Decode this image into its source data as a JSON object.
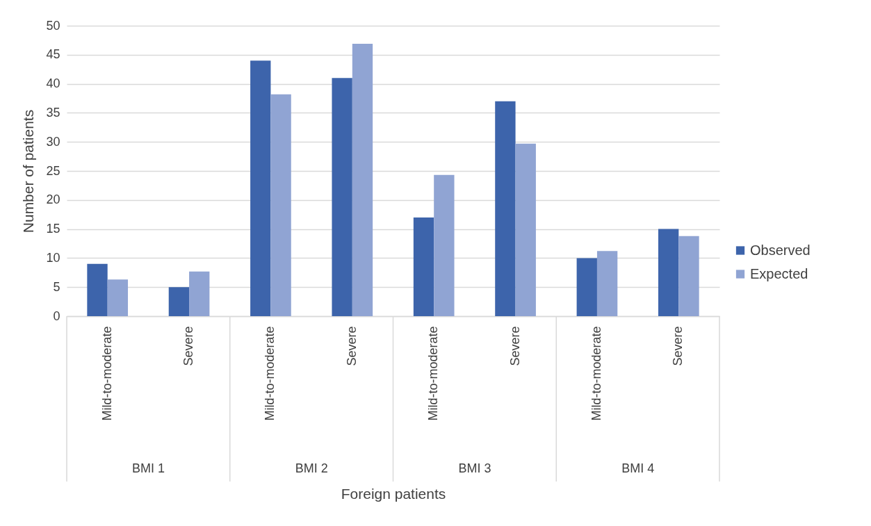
{
  "chart_data": {
    "type": "bar",
    "xlabel": "Foreign patients",
    "ylabel": "Number of patients",
    "categories": [
      "Mild-to-moderate",
      "Severe",
      "Mild-to-moderate",
      "Severe",
      "Mild-to-moderate",
      "Severe",
      "Mild-to-moderate",
      "Severe"
    ],
    "annotations": [
      "BMI 1",
      "BMI 2",
      "BMI 3",
      "BMI 4"
    ],
    "series": [
      {
        "name": "Observed",
        "color": "#3d64ab",
        "values": [
          9,
          5,
          44,
          41,
          17,
          37,
          10,
          15
        ]
      },
      {
        "name": "Expected",
        "color": "#90a4d3",
        "values": [
          6.3,
          7.7,
          38.2,
          46.9,
          24.3,
          29.7,
          11.2,
          13.8
        ]
      }
    ],
    "ylim": [
      0,
      50
    ],
    "yticks": [
      0,
      5,
      10,
      15,
      20,
      25,
      30,
      35,
      40,
      45,
      50
    ],
    "grid": "y",
    "legend": "right"
  }
}
